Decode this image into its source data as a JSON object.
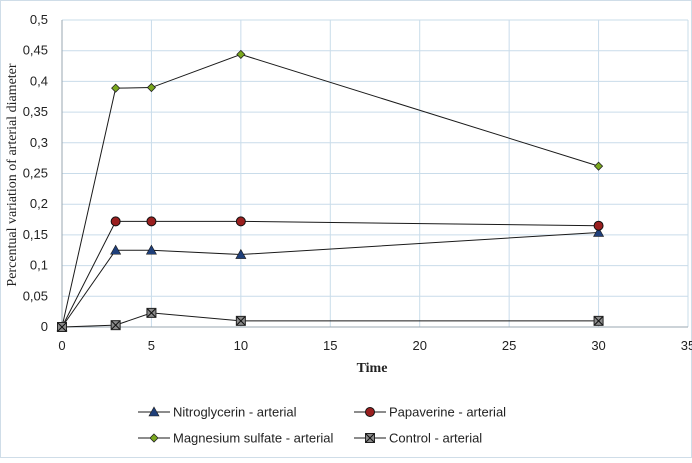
{
  "chart_data": {
    "type": "line",
    "title": "",
    "xlabel": "Time",
    "ylabel": "Percentual variation of arterial diameter",
    "xlim": [
      0,
      35
    ],
    "ylim": [
      0,
      0.5
    ],
    "x_ticks": [
      0,
      5,
      10,
      15,
      20,
      25,
      30,
      35
    ],
    "y_ticks": [
      0,
      0.05,
      0.1,
      0.15,
      0.2,
      0.25,
      0.3,
      0.35,
      0.4,
      0.45,
      0.5
    ],
    "x_tick_labels": [
      "0",
      "5",
      "10",
      "15",
      "20",
      "25",
      "30",
      "35"
    ],
    "y_tick_labels": [
      "0",
      "0,05",
      "0,1",
      "0,15",
      "0,2",
      "0,25",
      "0,3",
      "0,35",
      "0,4",
      "0,45",
      "0,5"
    ],
    "grid": true,
    "legend_position": "bottom",
    "x": [
      0,
      3,
      5,
      10,
      30
    ],
    "series": [
      {
        "name": "Nitroglycerin - arterial",
        "marker": "triangle",
        "color": "#1f3f7a",
        "values": [
          0,
          0.125,
          0.125,
          0.118,
          0.154
        ]
      },
      {
        "name": "Papaverine - arterial",
        "marker": "circle",
        "color": "#9a1f1f",
        "values": [
          0,
          0.172,
          0.172,
          0.172,
          0.165
        ]
      },
      {
        "name": "Magnesium sulfate - arterial",
        "marker": "diamond",
        "color": "#7aa81e",
        "values": [
          0,
          0.389,
          0.39,
          0.444,
          0.262
        ]
      },
      {
        "name": "Control - arterial",
        "marker": "square-x",
        "color": "#4a4a4a",
        "values": [
          0,
          0.003,
          0.023,
          0.01,
          0.01
        ]
      }
    ]
  }
}
